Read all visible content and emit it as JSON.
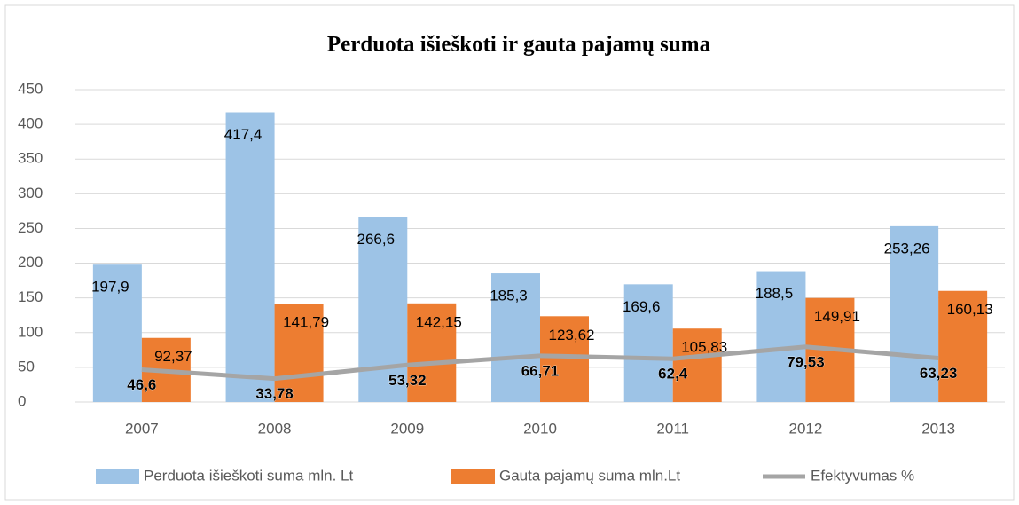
{
  "chart_data": {
    "type": "bar",
    "title": "Perduota išieškoti ir gauta pajamų suma",
    "categories": [
      "2007",
      "2008",
      "2009",
      "2010",
      "2011",
      "2012",
      "2013"
    ],
    "series": [
      {
        "name": "Perduota išieškoti suma mln. Lt",
        "color": "#9dc3e6",
        "values": [
          197.9,
          417.4,
          266.6,
          185.3,
          169.6,
          188.5,
          253.26
        ],
        "value_labels": [
          "197,9",
          "417,4",
          "266,6",
          "185,3",
          "169,6",
          "188,5",
          "253,26"
        ]
      },
      {
        "name": "Gauta pajamų suma mln.Lt",
        "color": "#ed7d31",
        "values": [
          92.37,
          141.79,
          142.15,
          123.62,
          105.83,
          149.91,
          160.13
        ],
        "value_labels": [
          "92,37",
          "141,79",
          "142,15",
          "123,62",
          "105,83",
          "149,91",
          "160,13"
        ]
      },
      {
        "name": "Efektyvumas %",
        "color": "#a5a5a5",
        "type": "line",
        "values": [
          46.6,
          33.78,
          53.32,
          66.71,
          62.4,
          79.53,
          63.23
        ],
        "value_labels": [
          "46,6",
          "33,78",
          "53,32",
          "66,71",
          "62,4",
          "79,53",
          "63,23"
        ]
      }
    ],
    "ylim": [
      0,
      450
    ],
    "yticks": [
      0,
      50,
      100,
      150,
      200,
      250,
      300,
      350,
      400,
      450
    ],
    "grid": true,
    "legend": "bottom"
  }
}
